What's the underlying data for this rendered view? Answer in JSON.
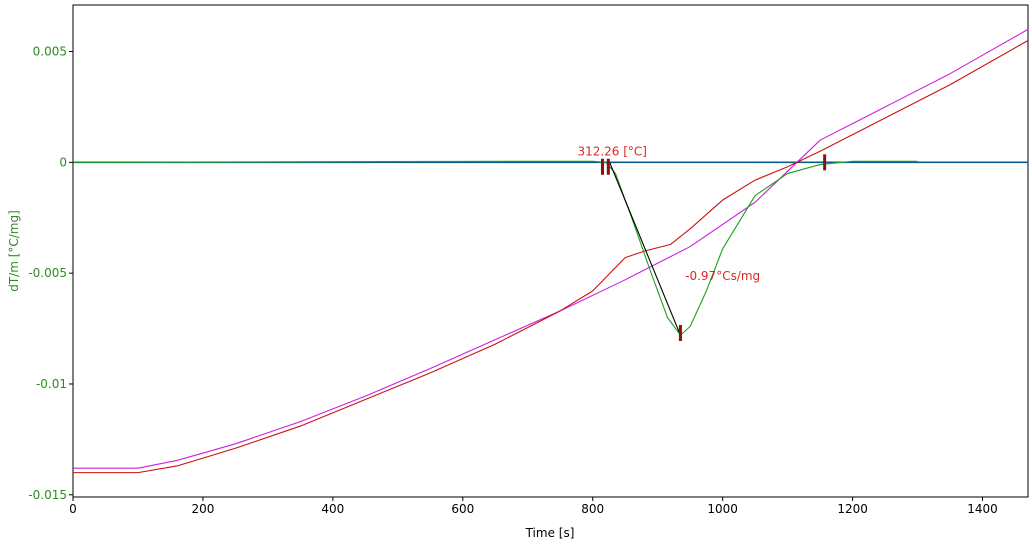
{
  "chart_data": {
    "type": "line",
    "title": "",
    "xlabel": "Time [s]",
    "ylabel": "dT/m  [°C/mg]",
    "xlim": [
      0,
      1470
    ],
    "ylim": [
      -0.0151,
      0.0071
    ],
    "x_ticks": [
      0,
      200,
      400,
      600,
      800,
      1000,
      1200,
      1400
    ],
    "x_tick_labels": [
      "0",
      "200",
      "400",
      "600",
      "800",
      "1000",
      "1200",
      "1400"
    ],
    "y_ticks": [
      0.005,
      0,
      -0.005,
      -0.01,
      -0.015
    ],
    "y_tick_labels": [
      "0.005",
      "0",
      "-0.005",
      "-0.01",
      "-0.015"
    ],
    "grid": false,
    "colors": {
      "axis_label": "#2e8b22",
      "tick_label_y": "#2e8b22",
      "tick_label_x": "#000000",
      "annotation": "#e0281e",
      "marker": "#8b1010"
    },
    "series": [
      {
        "color": "#0b5d8c",
        "x": [
          0,
          1470
        ],
        "y": [
          0.0,
          0.0
        ]
      },
      {
        "color": "#cc22dd",
        "x": [
          0,
          100,
          160,
          250,
          350,
          450,
          550,
          650,
          750,
          850,
          950,
          1050,
          1150,
          1250,
          1350,
          1470
        ],
        "y": [
          -0.0138,
          -0.0138,
          -0.01345,
          -0.0127,
          -0.0117,
          -0.01055,
          -0.0093,
          -0.008,
          -0.0067,
          -0.0053,
          -0.0038,
          -0.0018,
          0.001,
          0.0025,
          0.004,
          0.006
        ]
      },
      {
        "color": "#cc1111",
        "x": [
          0,
          100,
          160,
          250,
          350,
          450,
          550,
          650,
          750,
          800,
          850,
          880,
          920,
          950,
          1000,
          1050,
          1100,
          1150,
          1250,
          1350,
          1470
        ],
        "y": [
          -0.014,
          -0.014,
          -0.0137,
          -0.0129,
          -0.0119,
          -0.0107,
          -0.0095,
          -0.0082,
          -0.0067,
          -0.0058,
          -0.0043,
          -0.004,
          -0.0037,
          -0.003,
          -0.0017,
          -0.0008,
          -0.0002,
          0.0005,
          0.002,
          0.0035,
          0.0055
        ]
      },
      {
        "color": "#1ea01e",
        "x": [
          0,
          690,
          800,
          820,
          835,
          860,
          890,
          915,
          935,
          950,
          975,
          1000,
          1050,
          1100,
          1150,
          1200,
          1300
        ],
        "y": [
          0.0,
          5e-05,
          5e-05,
          0.0,
          -0.0005,
          -0.0025,
          -0.005,
          -0.007,
          -0.0078,
          -0.0074,
          -0.0058,
          -0.0039,
          -0.0015,
          -0.0005,
          -0.0001,
          5e-05,
          5e-05
        ]
      },
      {
        "color": "#000000",
        "x": [
          826,
          935
        ],
        "y": [
          0.0,
          -0.0078
        ]
      }
    ],
    "markers": [
      {
        "x": 815,
        "y": -0.0002
      },
      {
        "x": 824,
        "y": -0.0002
      },
      {
        "x": 935,
        "y": -0.0077
      },
      {
        "x": 1157,
        "y": 0.0
      }
    ],
    "annotations": [
      {
        "text": "312.26 [°C]",
        "x": 830,
        "y": 0.0003
      },
      {
        "text": "-0.97°Cs/mg",
        "x": 1000,
        "y": -0.0053
      }
    ]
  }
}
